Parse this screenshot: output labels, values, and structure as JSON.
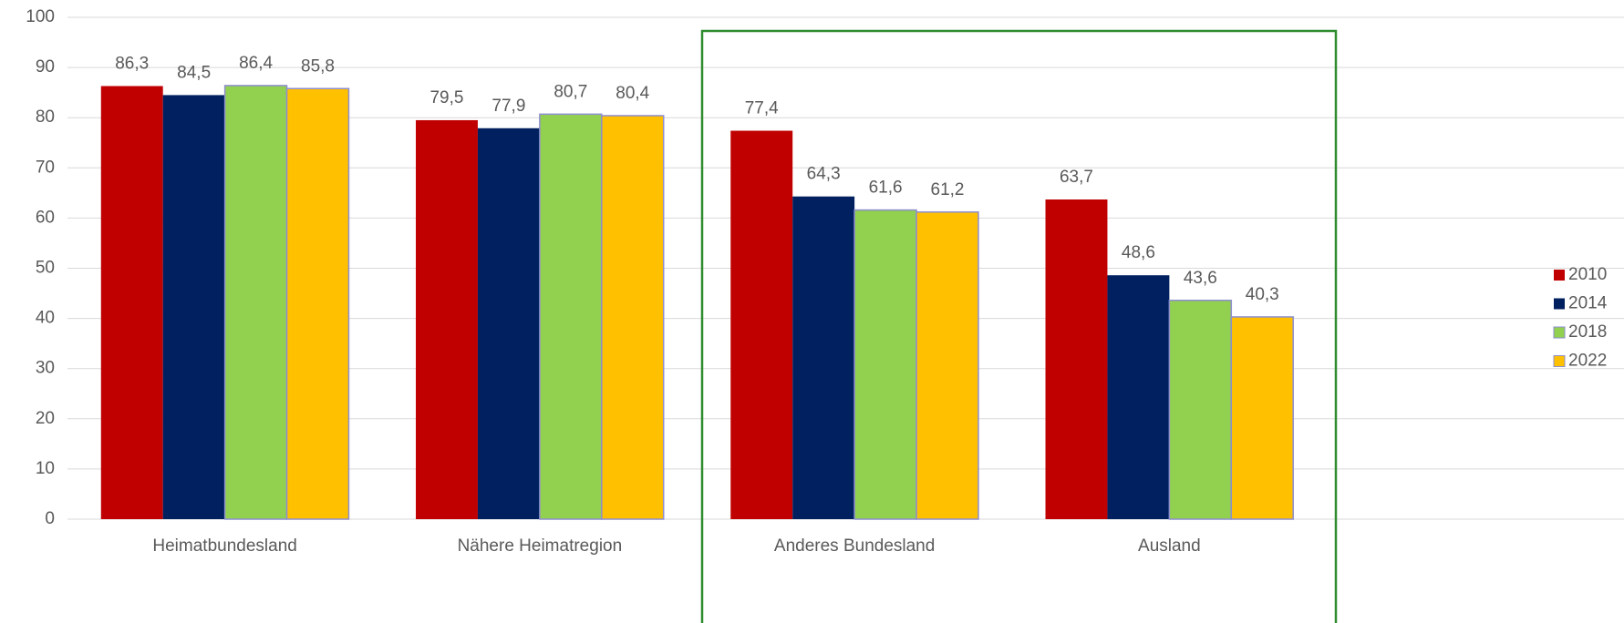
{
  "chart_data": {
    "type": "bar",
    "categories": [
      "Heimatbundesland",
      "Nähere Heimatregion",
      "Anderes Bundesland",
      "Ausland"
    ],
    "series": [
      {
        "name": "2010",
        "color": "#c00000",
        "values": [
          86.3,
          79.5,
          77.4,
          63.7
        ],
        "value_labels": [
          "86,3",
          "79,5",
          "77,4",
          "63,7"
        ]
      },
      {
        "name": "2014",
        "color": "#002060",
        "values": [
          84.5,
          77.9,
          64.3,
          48.6
        ],
        "value_labels": [
          "84,5",
          "77,9",
          "64,3",
          "48,6"
        ]
      },
      {
        "name": "2018",
        "color": "#92d050",
        "values": [
          86.4,
          80.7,
          61.6,
          43.6
        ],
        "value_labels": [
          "86,4",
          "80,7",
          "61,6",
          "43,6"
        ]
      },
      {
        "name": "2022",
        "color": "#ffc000",
        "values": [
          85.8,
          80.4,
          61.2,
          40.3
        ],
        "value_labels": [
          "85,8",
          "80,4",
          "61,2",
          "40,3"
        ]
      }
    ],
    "ylim": [
      0,
      100
    ],
    "yticks": [
      0,
      10,
      20,
      30,
      40,
      50,
      60,
      70,
      80,
      90,
      100
    ],
    "grid": true,
    "legend": "right"
  }
}
